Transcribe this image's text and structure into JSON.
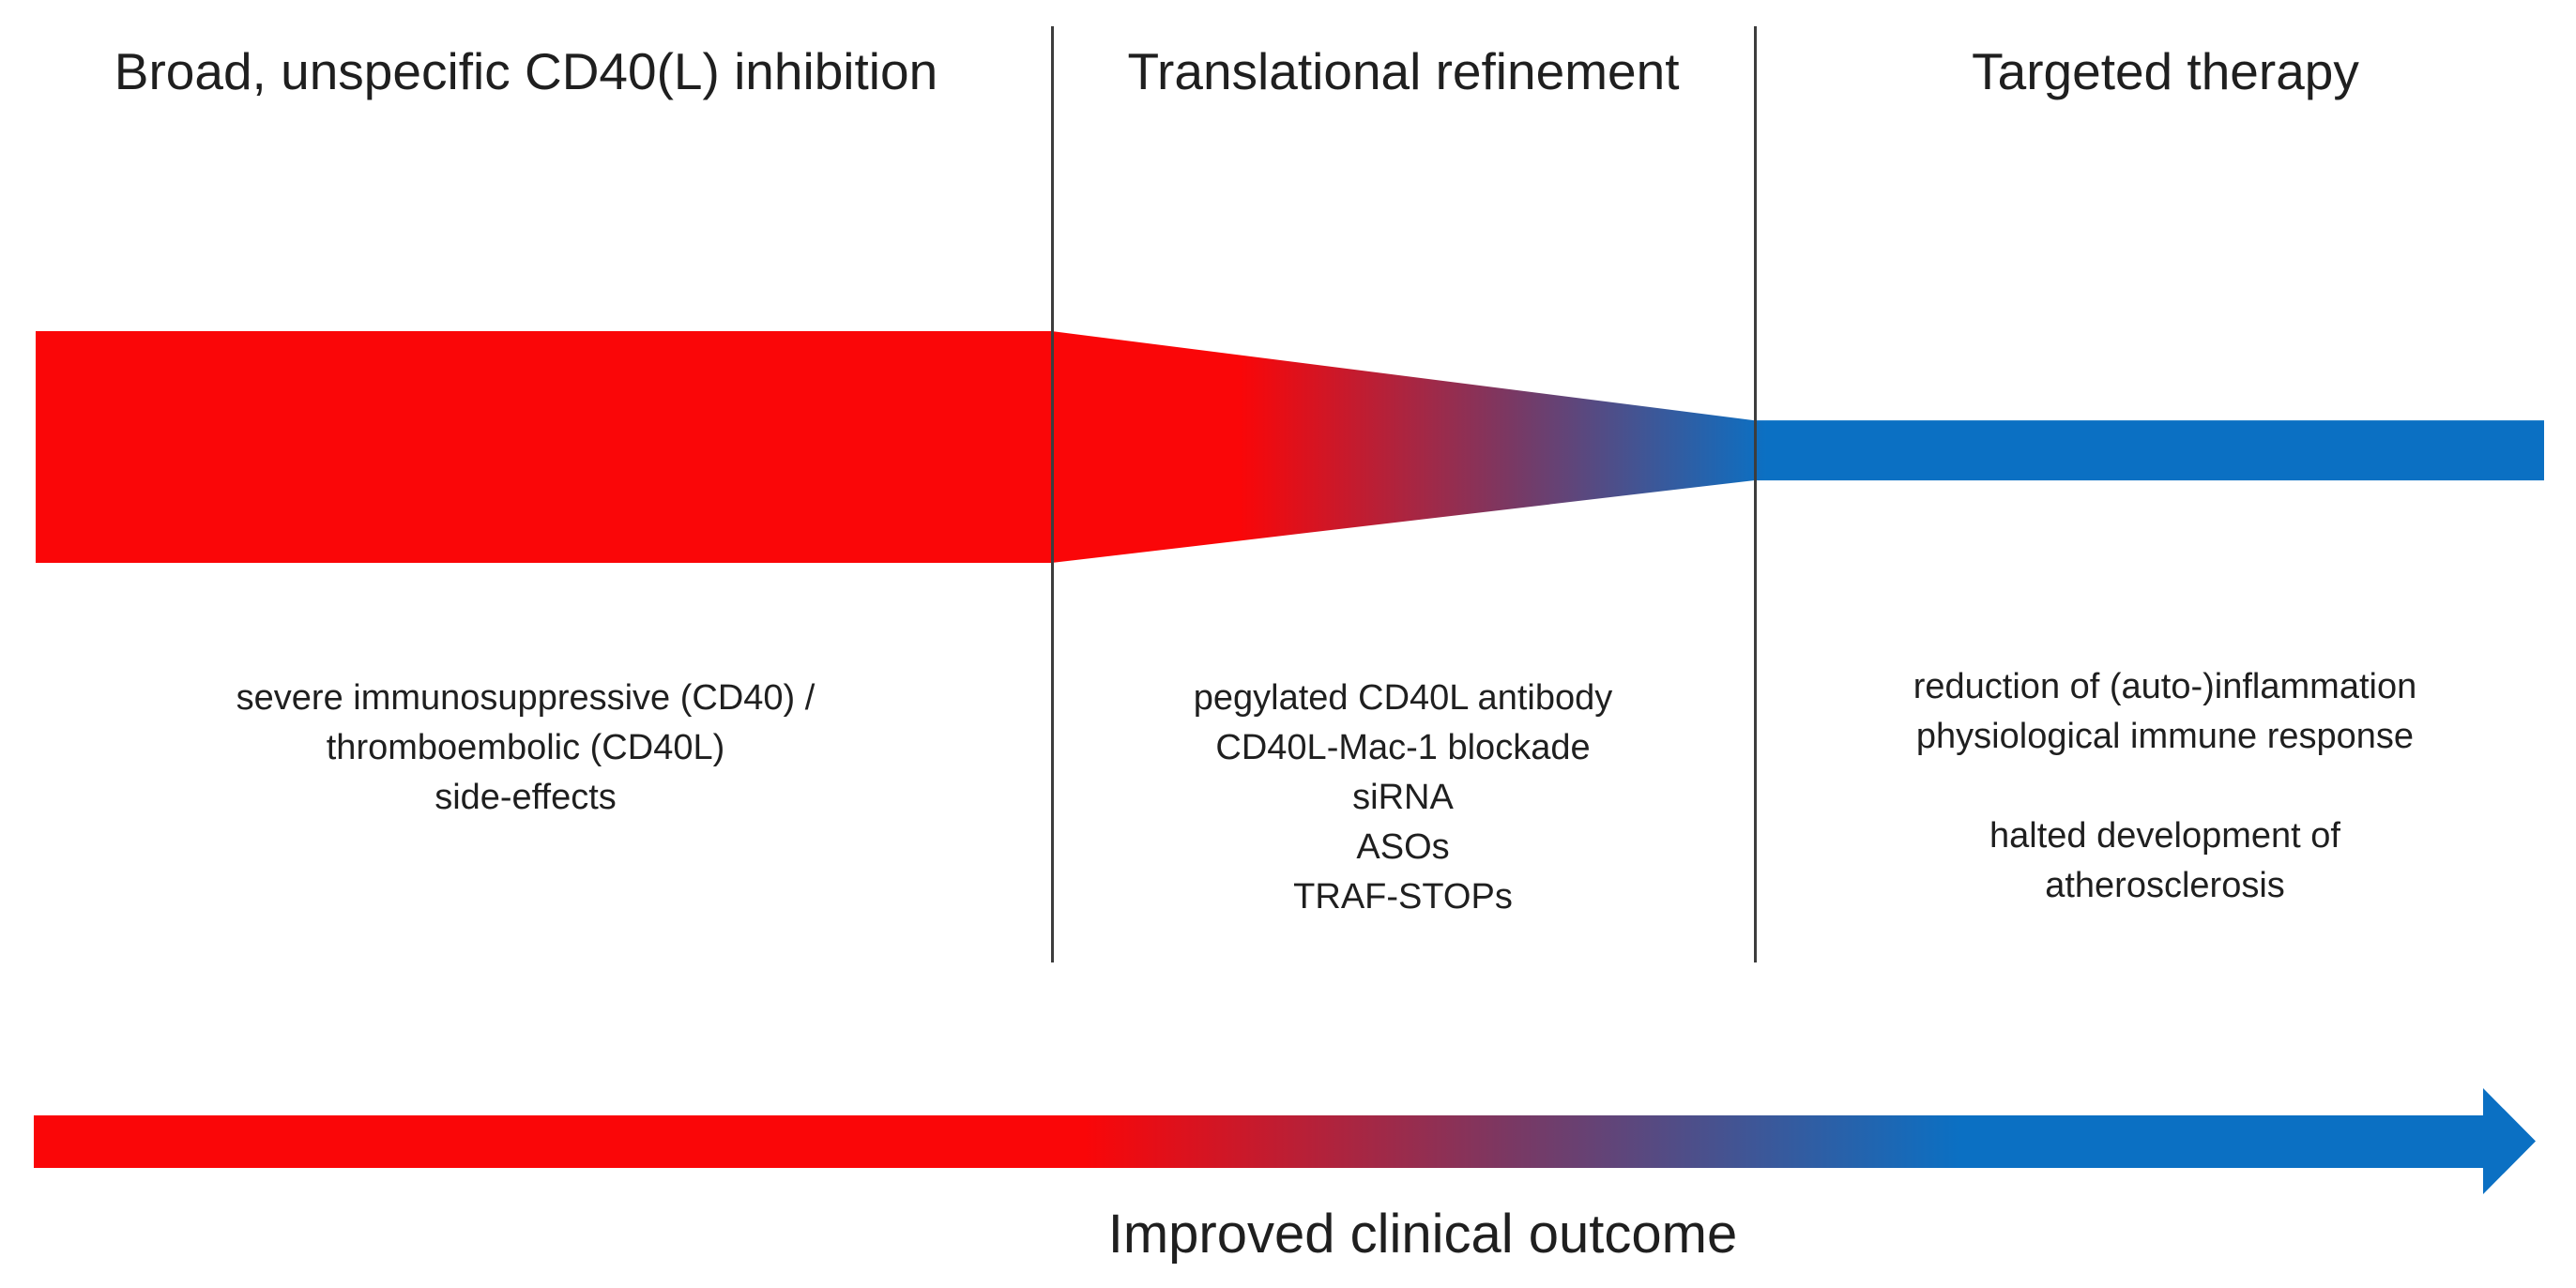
{
  "figure": {
    "columns": [
      {
        "title": "Broad, unspecific CD40(L) inhibition",
        "lines": [
          "severe immunosuppressive (CD40) /",
          "thromboembolic (CD40L)",
          "side-effects"
        ]
      },
      {
        "title": "Translational refinement",
        "lines": [
          "pegylated CD40L antibody",
          "CD40L-Mac-1 blockade",
          "siRNA",
          "ASOs",
          "TRAF-STOPs"
        ]
      },
      {
        "title": "Targeted therapy",
        "lines": [
          "reduction of (auto-)inflammation",
          "physiological immune response",
          "",
          "halted development of",
          "atherosclerosis"
        ]
      }
    ],
    "arrow_label": "Improved clinical outcome"
  },
  "colors": {
    "red": "#fa0608",
    "mid": "#7a3863",
    "blue": "#0b70c3",
    "divider": "#3d3d3d",
    "text": "#1f1f1f"
  }
}
